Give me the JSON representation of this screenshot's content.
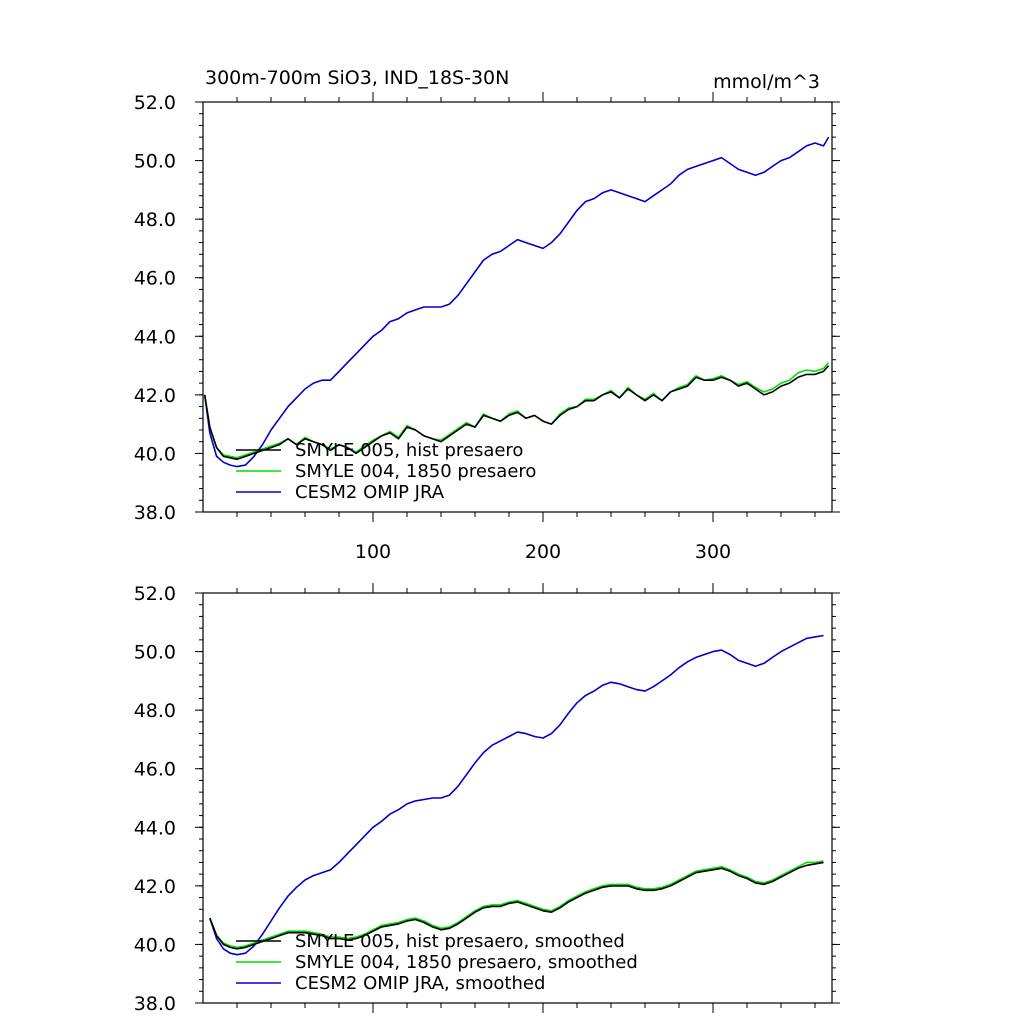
{
  "chart_data": [
    {
      "type": "line",
      "title_left": "300m-700m SiO3, IND_18S-30N",
      "title_right": "mmol/m^3",
      "xlim": [
        0,
        370
      ],
      "ylim": [
        38,
        52
      ],
      "yticks": [
        38,
        40,
        42,
        44,
        46,
        48,
        50,
        52
      ],
      "ytick_labels": [
        "38.0",
        "40.0",
        "42.0",
        "44.0",
        "46.0",
        "48.0",
        "50.0",
        "52.0"
      ],
      "xticks": [
        100,
        200,
        300
      ],
      "xtick_labels": [
        "100",
        "200",
        "300"
      ],
      "grid": false,
      "legend_position": "bottom-left",
      "series": [
        {
          "name": "SMYLE 005, hist presaero",
          "color": "#000000",
          "x": [
            1,
            4,
            8,
            12,
            16,
            20,
            25,
            30,
            35,
            40,
            45,
            50,
            55,
            60,
            65,
            70,
            75,
            80,
            85,
            90,
            95,
            100,
            105,
            110,
            115,
            120,
            125,
            130,
            135,
            140,
            145,
            150,
            155,
            160,
            165,
            170,
            175,
            180,
            185,
            190,
            195,
            200,
            205,
            210,
            215,
            220,
            225,
            230,
            235,
            240,
            245,
            250,
            255,
            260,
            265,
            270,
            275,
            280,
            285,
            290,
            295,
            300,
            305,
            310,
            315,
            320,
            325,
            330,
            335,
            340,
            345,
            350,
            355,
            360,
            365,
            368
          ],
          "y": [
            42.0,
            40.9,
            40.2,
            39.9,
            39.85,
            39.8,
            39.9,
            40.0,
            40.1,
            40.2,
            40.3,
            40.5,
            40.3,
            40.5,
            40.4,
            40.3,
            40.1,
            40.3,
            40.2,
            40.0,
            40.2,
            40.4,
            40.6,
            40.7,
            40.5,
            40.9,
            40.8,
            40.6,
            40.5,
            40.4,
            40.6,
            40.8,
            41.0,
            40.9,
            41.3,
            41.2,
            41.1,
            41.3,
            41.4,
            41.2,
            41.3,
            41.1,
            41.0,
            41.3,
            41.5,
            41.6,
            41.8,
            41.8,
            42.0,
            42.1,
            41.9,
            42.2,
            42.0,
            41.8,
            42.0,
            41.8,
            42.1,
            42.2,
            42.3,
            42.6,
            42.5,
            42.5,
            42.6,
            42.5,
            42.3,
            42.4,
            42.2,
            42.0,
            42.1,
            42.3,
            42.4,
            42.6,
            42.7,
            42.7,
            42.8,
            43.0
          ]
        },
        {
          "name": "SMYLE 004, 1850 presaero",
          "color": "#00dd00",
          "x": [
            1,
            4,
            8,
            12,
            16,
            20,
            25,
            30,
            35,
            40,
            45,
            50,
            55,
            60,
            65,
            70,
            75,
            80,
            85,
            90,
            95,
            100,
            105,
            110,
            115,
            120,
            125,
            130,
            135,
            140,
            145,
            150,
            155,
            160,
            165,
            170,
            175,
            180,
            185,
            190,
            195,
            200,
            205,
            210,
            215,
            220,
            225,
            230,
            235,
            240,
            245,
            250,
            255,
            260,
            265,
            270,
            275,
            280,
            285,
            290,
            295,
            300,
            305,
            310,
            315,
            320,
            325,
            330,
            335,
            340,
            345,
            350,
            355,
            360,
            365,
            368
          ],
          "y": [
            42.0,
            40.9,
            40.2,
            39.95,
            39.9,
            39.85,
            39.95,
            40.05,
            40.15,
            40.25,
            40.35,
            40.5,
            40.3,
            40.55,
            40.4,
            40.3,
            40.15,
            40.3,
            40.2,
            40.05,
            40.25,
            40.45,
            40.6,
            40.75,
            40.55,
            40.95,
            40.8,
            40.6,
            40.5,
            40.45,
            40.65,
            40.85,
            41.05,
            40.9,
            41.35,
            41.2,
            41.1,
            41.35,
            41.45,
            41.2,
            41.3,
            41.1,
            41.0,
            41.35,
            41.55,
            41.6,
            41.85,
            41.85,
            42.0,
            42.15,
            41.9,
            42.25,
            42.0,
            41.85,
            42.05,
            41.8,
            42.1,
            42.25,
            42.35,
            42.65,
            42.5,
            42.55,
            42.65,
            42.5,
            42.35,
            42.45,
            42.25,
            42.1,
            42.2,
            42.4,
            42.5,
            42.75,
            42.85,
            42.8,
            42.9,
            43.1
          ]
        },
        {
          "name": "CESM2 OMIP JRA",
          "color": "#0000cc",
          "x": [
            1,
            4,
            8,
            12,
            16,
            20,
            25,
            30,
            35,
            40,
            45,
            50,
            55,
            60,
            65,
            70,
            75,
            80,
            85,
            90,
            95,
            100,
            105,
            110,
            115,
            120,
            125,
            130,
            135,
            140,
            145,
            150,
            155,
            160,
            165,
            170,
            175,
            180,
            185,
            190,
            195,
            200,
            205,
            210,
            215,
            220,
            225,
            230,
            235,
            240,
            245,
            250,
            255,
            260,
            265,
            270,
            275,
            280,
            285,
            290,
            295,
            300,
            305,
            310,
            315,
            320,
            325,
            330,
            335,
            340,
            345,
            350,
            355,
            360,
            365,
            368
          ],
          "y": [
            42.0,
            40.7,
            39.9,
            39.7,
            39.6,
            39.55,
            39.6,
            39.9,
            40.3,
            40.8,
            41.2,
            41.6,
            41.9,
            42.2,
            42.4,
            42.5,
            42.5,
            42.8,
            43.1,
            43.4,
            43.7,
            44.0,
            44.2,
            44.5,
            44.6,
            44.8,
            44.9,
            45.0,
            45.0,
            45.0,
            45.1,
            45.4,
            45.8,
            46.2,
            46.6,
            46.8,
            46.9,
            47.1,
            47.3,
            47.2,
            47.1,
            47.0,
            47.2,
            47.5,
            47.9,
            48.3,
            48.6,
            48.7,
            48.9,
            49.0,
            48.9,
            48.8,
            48.7,
            48.6,
            48.8,
            49.0,
            49.2,
            49.5,
            49.7,
            49.8,
            49.9,
            50.0,
            50.1,
            49.9,
            49.7,
            49.6,
            49.5,
            49.6,
            49.8,
            50.0,
            50.1,
            50.3,
            50.5,
            50.6,
            50.5,
            50.8
          ]
        }
      ]
    },
    {
      "type": "line",
      "title_left": "",
      "title_right": "",
      "xlim": [
        0,
        370
      ],
      "ylim": [
        38,
        52
      ],
      "yticks": [
        38,
        40,
        42,
        44,
        46,
        48,
        50,
        52
      ],
      "ytick_labels": [
        "38.0",
        "40.0",
        "42.0",
        "44.0",
        "46.0",
        "48.0",
        "50.0",
        "52.0"
      ],
      "xticks": [
        100,
        200,
        300
      ],
      "xtick_labels": [],
      "grid": false,
      "legend_position": "bottom-left",
      "series": [
        {
          "name": "SMYLE 005, hist presaero, smoothed",
          "color": "#000000",
          "x": [
            4,
            8,
            12,
            16,
            20,
            25,
            30,
            35,
            40,
            45,
            50,
            55,
            60,
            65,
            70,
            75,
            80,
            85,
            90,
            95,
            100,
            105,
            110,
            115,
            120,
            125,
            130,
            135,
            140,
            145,
            150,
            155,
            160,
            165,
            170,
            175,
            180,
            185,
            190,
            195,
            200,
            205,
            210,
            215,
            220,
            225,
            230,
            235,
            240,
            245,
            250,
            255,
            260,
            265,
            270,
            275,
            280,
            285,
            290,
            295,
            300,
            305,
            310,
            315,
            320,
            325,
            330,
            335,
            340,
            345,
            350,
            355,
            360,
            365
          ],
          "y": [
            40.9,
            40.3,
            40.0,
            39.9,
            39.85,
            39.9,
            40.0,
            40.1,
            40.2,
            40.3,
            40.4,
            40.4,
            40.4,
            40.35,
            40.3,
            40.2,
            40.2,
            40.15,
            40.2,
            40.3,
            40.45,
            40.6,
            40.65,
            40.7,
            40.8,
            40.85,
            40.75,
            40.6,
            40.5,
            40.55,
            40.7,
            40.9,
            41.1,
            41.25,
            41.3,
            41.3,
            41.4,
            41.45,
            41.35,
            41.25,
            41.15,
            41.1,
            41.25,
            41.45,
            41.6,
            41.75,
            41.85,
            41.95,
            42.0,
            42.0,
            42.0,
            41.9,
            41.85,
            41.85,
            41.9,
            42.0,
            42.15,
            42.3,
            42.45,
            42.5,
            42.55,
            42.6,
            42.5,
            42.35,
            42.25,
            42.1,
            42.05,
            42.15,
            42.3,
            42.45,
            42.6,
            42.7,
            42.75,
            42.8
          ]
        },
        {
          "name": "SMYLE 004, 1850 presaero, smoothed",
          "color": "#00dd00",
          "x": [
            4,
            8,
            12,
            16,
            20,
            25,
            30,
            35,
            40,
            45,
            50,
            55,
            60,
            65,
            70,
            75,
            80,
            85,
            90,
            95,
            100,
            105,
            110,
            115,
            120,
            125,
            130,
            135,
            140,
            145,
            150,
            155,
            160,
            165,
            170,
            175,
            180,
            185,
            190,
            195,
            200,
            205,
            210,
            215,
            220,
            225,
            230,
            235,
            240,
            245,
            250,
            255,
            260,
            265,
            270,
            275,
            280,
            285,
            290,
            295,
            300,
            305,
            310,
            315,
            320,
            325,
            330,
            335,
            340,
            345,
            350,
            355,
            360,
            365
          ],
          "y": [
            40.9,
            40.3,
            40.05,
            39.95,
            39.9,
            39.95,
            40.05,
            40.15,
            40.25,
            40.35,
            40.45,
            40.45,
            40.45,
            40.4,
            40.35,
            40.25,
            40.25,
            40.2,
            40.25,
            40.35,
            40.5,
            40.65,
            40.7,
            40.75,
            40.85,
            40.9,
            40.8,
            40.65,
            40.55,
            40.6,
            40.75,
            40.95,
            41.15,
            41.3,
            41.35,
            41.35,
            41.45,
            41.5,
            41.4,
            41.3,
            41.2,
            41.15,
            41.3,
            41.5,
            41.65,
            41.8,
            41.9,
            42.0,
            42.05,
            42.05,
            42.05,
            41.95,
            41.9,
            41.9,
            41.95,
            42.05,
            42.2,
            42.35,
            42.5,
            42.55,
            42.6,
            42.65,
            42.55,
            42.4,
            42.3,
            42.15,
            42.1,
            42.2,
            42.35,
            42.5,
            42.65,
            42.8,
            42.8,
            42.85
          ]
        },
        {
          "name": "CESM2 OMIP JRA, smoothed",
          "color": "#0000cc",
          "x": [
            4,
            8,
            12,
            16,
            20,
            25,
            30,
            35,
            40,
            45,
            50,
            55,
            60,
            65,
            70,
            75,
            80,
            85,
            90,
            95,
            100,
            105,
            110,
            115,
            120,
            125,
            130,
            135,
            140,
            145,
            150,
            155,
            160,
            165,
            170,
            175,
            180,
            185,
            190,
            195,
            200,
            205,
            210,
            215,
            220,
            225,
            230,
            235,
            240,
            245,
            250,
            255,
            260,
            265,
            270,
            275,
            280,
            285,
            290,
            295,
            300,
            305,
            310,
            315,
            320,
            325,
            330,
            335,
            340,
            345,
            350,
            355,
            360,
            365
          ],
          "y": [
            40.9,
            40.2,
            39.85,
            39.7,
            39.65,
            39.7,
            39.95,
            40.35,
            40.8,
            41.25,
            41.65,
            41.95,
            42.2,
            42.35,
            42.45,
            42.55,
            42.8,
            43.1,
            43.4,
            43.7,
            44.0,
            44.2,
            44.45,
            44.6,
            44.8,
            44.9,
            44.95,
            45.0,
            45.0,
            45.1,
            45.4,
            45.8,
            46.2,
            46.55,
            46.8,
            46.95,
            47.1,
            47.25,
            47.2,
            47.1,
            47.05,
            47.2,
            47.5,
            47.9,
            48.25,
            48.5,
            48.65,
            48.85,
            48.95,
            48.9,
            48.8,
            48.7,
            48.65,
            48.8,
            49.0,
            49.2,
            49.45,
            49.65,
            49.8,
            49.9,
            50.0,
            50.05,
            49.9,
            49.7,
            49.6,
            49.5,
            49.6,
            49.8,
            50.0,
            50.15,
            50.3,
            50.45,
            50.5,
            50.55
          ]
        }
      ]
    }
  ]
}
